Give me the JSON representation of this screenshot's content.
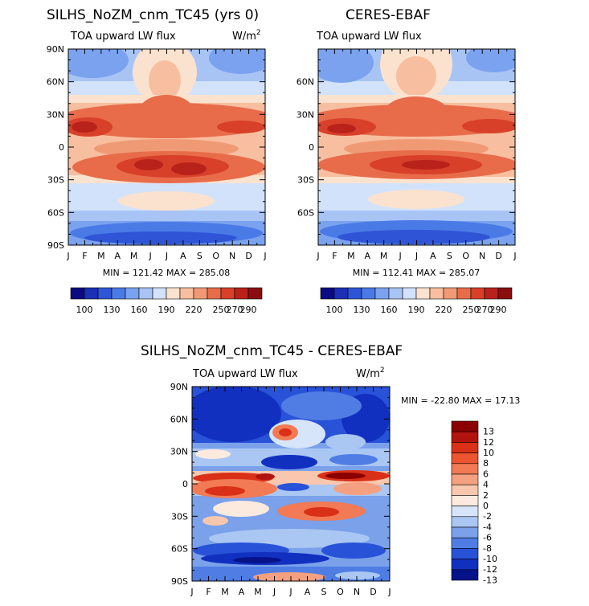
{
  "chart_data": [
    {
      "type": "heatmap",
      "title": "SILHS_NoZM_cnm_TC45 (yrs 0)",
      "subtitle": "TOA upward LW flux",
      "units": "W/m",
      "units_sup": "2",
      "x_ticks": [
        "J",
        "F",
        "M",
        "A",
        "M",
        "J",
        "J",
        "A",
        "S",
        "O",
        "N",
        "D",
        "J"
      ],
      "y_ticks": [
        "90N",
        "60N",
        "30N",
        "0",
        "30S",
        "60S",
        "90S"
      ],
      "stats": "MIN = 121.42  MAX = 285.08",
      "colorbar_labels": [
        "100",
        "130",
        "160",
        "190",
        "220",
        "250",
        "270",
        "290"
      ],
      "min": 121.42,
      "max": 285.08
    },
    {
      "type": "heatmap",
      "title": "CERES-EBAF",
      "subtitle": "TOA upward LW flux",
      "units": "",
      "units_sup": "",
      "x_ticks": [
        "J",
        "F",
        "M",
        "A",
        "M",
        "J",
        "J",
        "A",
        "S",
        "O",
        "N",
        "D",
        "J"
      ],
      "y_ticks": [
        "60N",
        "30N",
        "0",
        "30S",
        "60S"
      ],
      "stats": "MIN = 112.41  MAX = 285.07",
      "colorbar_labels": [
        "100",
        "130",
        "160",
        "190",
        "220",
        "250",
        "270",
        "290"
      ],
      "min": 112.41,
      "max": 285.07
    },
    {
      "type": "heatmap",
      "title": "SILHS_NoZM_cnm_TC45 - CERES-EBAF",
      "subtitle": "TOA upward LW flux",
      "units": "W/m",
      "units_sup": "2",
      "x_ticks": [
        "J",
        "F",
        "M",
        "A",
        "M",
        "J",
        "J",
        "A",
        "S",
        "O",
        "N",
        "D",
        "J"
      ],
      "y_ticks": [
        "90N",
        "60N",
        "30N",
        "0",
        "30S",
        "60S",
        "90S"
      ],
      "stats": "MIN = -22.80 MAX =  17.13",
      "colorbar_labels": [
        "13",
        "12",
        "10",
        "8",
        "6",
        "4",
        "2",
        "0",
        "-2",
        "-4",
        "-6",
        "-8",
        "-10",
        "-12",
        "-13"
      ],
      "min": -22.8,
      "max": 17.13
    }
  ],
  "colors": {
    "abs_scale": [
      "#0a0a82",
      "#1c2fb5",
      "#2f55d6",
      "#4a7ae6",
      "#7aa2ef",
      "#a8c4f5",
      "#d2e2fb",
      "#fbe2cf",
      "#f7bf9f",
      "#f09a75",
      "#e86c4a",
      "#d8402a",
      "#b9221a",
      "#8a0d10"
    ],
    "diff_scale": [
      "#8a0000",
      "#b3130f",
      "#d93017",
      "#ed5530",
      "#f27a54",
      "#f4a080",
      "#f8c7ad",
      "#fdeadf",
      "#d7e5fb",
      "#a9c7f2",
      "#7aa1ea",
      "#4f7de3",
      "#2852d8",
      "#1230c0",
      "#06128a"
    ]
  }
}
